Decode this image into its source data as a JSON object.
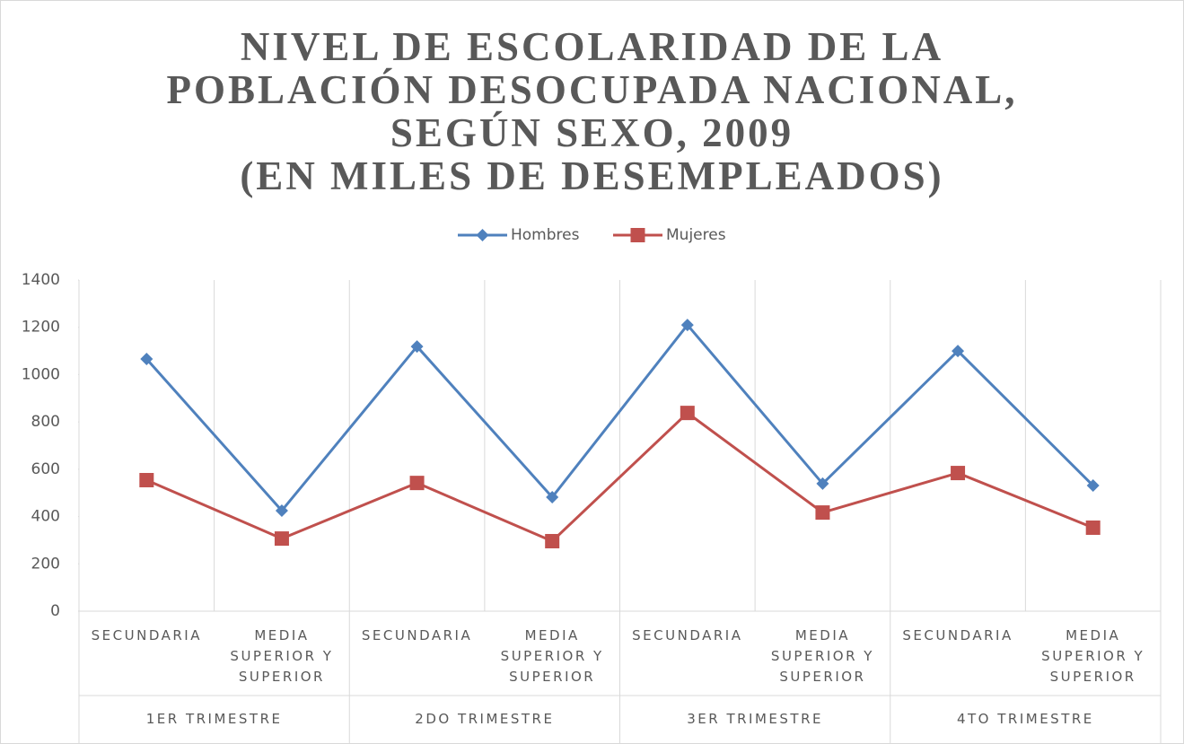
{
  "chart_data": {
    "type": "line",
    "title": "NIVEL DE ESCOLARIDAD DE LA\nPOBLACIÓN DESOCUPADA NACIONAL,\nSEGÚN SEXO, 2009\n(EN MILES DE DESEMPLEADOS)",
    "categories": [
      "SECUNDARIA",
      "MEDIA SUPERIOR Y SUPERIOR",
      "SECUNDARIA",
      "MEDIA SUPERIOR Y SUPERIOR",
      "SECUNDARIA",
      "MEDIA SUPERIOR Y SUPERIOR",
      "SECUNDARIA",
      "MEDIA SUPERIOR Y SUPERIOR"
    ],
    "groups": [
      "1ER TRIMESTRE",
      "2DO TRIMESTRE",
      "3ER TRIMESTRE",
      "4TO TRIMESTRE"
    ],
    "series": [
      {
        "name": "Hombres",
        "color": "#4f81bd",
        "marker": "diamond",
        "values": [
          1066,
          425,
          1119,
          482,
          1210,
          539,
          1100,
          531
        ]
      },
      {
        "name": "Mujeres",
        "color": "#c0504d",
        "marker": "square",
        "values": [
          554,
          307,
          542,
          296,
          838,
          417,
          584,
          353
        ]
      }
    ],
    "ylim": [
      0,
      1400
    ],
    "yticks": [
      0,
      200,
      400,
      600,
      800,
      1000,
      1200,
      1400
    ],
    "legend": "top"
  }
}
